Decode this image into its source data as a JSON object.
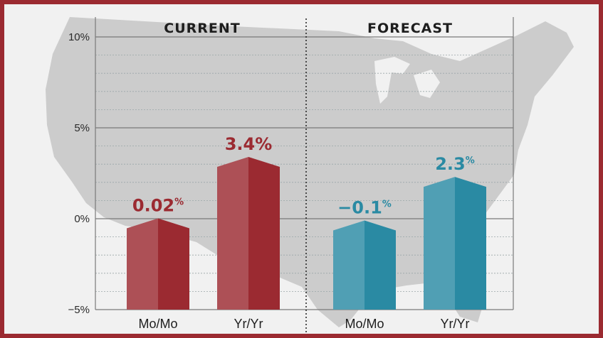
{
  "chart_data": {
    "type": "bar",
    "groups": [
      "CURRENT",
      "FORECAST"
    ],
    "categories": [
      "Mo/Mo",
      "Yr/Yr",
      "Mo/Mo",
      "Yr/Yr"
    ],
    "series": [
      {
        "group": "CURRENT",
        "category": "Mo/Mo",
        "value": 0.02,
        "label_num": "0.02",
        "label_unit": "%",
        "color": "#9b2a31"
      },
      {
        "group": "CURRENT",
        "category": "Yr/Yr",
        "value": 3.4,
        "label_num": "3.4%",
        "label_unit": "",
        "color": "#9b2a31"
      },
      {
        "group": "FORECAST",
        "category": "Mo/Mo",
        "value": -0.1,
        "label_num": "−0.1",
        "label_unit": "%",
        "color": "#2a8aa3"
      },
      {
        "group": "FORECAST",
        "category": "Yr/Yr",
        "value": 2.3,
        "label_num": "2.3",
        "label_unit": "%",
        "color": "#2a8aa3"
      }
    ],
    "yticks": [
      "10%",
      "5%",
      "0%",
      "−5%"
    ],
    "ylim": [
      -5,
      10
    ],
    "grid": true,
    "background": "us-map-silhouette"
  },
  "colors": {
    "current": "#9b2a31",
    "forecast": "#2a8aa3",
    "border": "#9b2a31",
    "map": "#c9c9c9"
  }
}
